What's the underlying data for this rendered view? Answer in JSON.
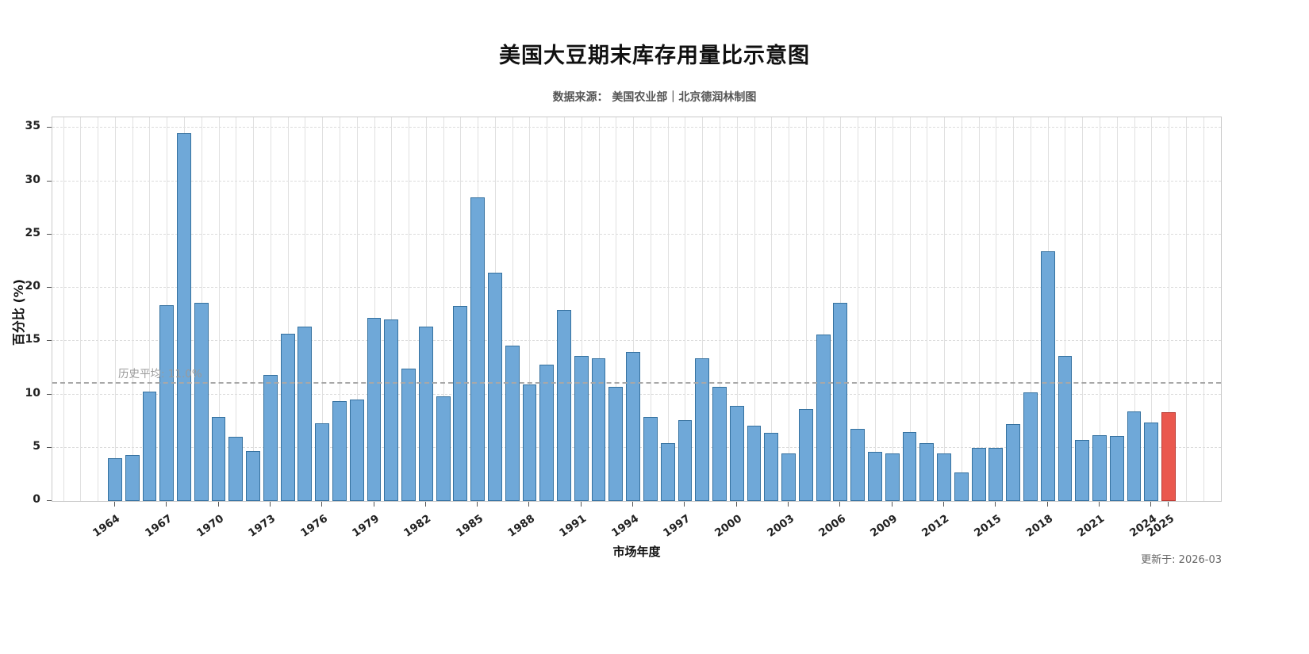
{
  "header": {
    "title": "美国大豆期末库存用量比示意图",
    "subtitle": "数据来源： 美国农业部｜北京德润林制图"
  },
  "footer": {
    "updated": "更新于: 2026-03"
  },
  "chart_data": {
    "type": "bar",
    "title": "美国大豆期末库存用量比示意图",
    "xlabel": "市场年度",
    "ylabel": "百分比 (%)",
    "ylim": [
      0,
      36
    ],
    "yticks": [
      0,
      5,
      10,
      15,
      20,
      25,
      30,
      35
    ],
    "xticks": [
      1964,
      1967,
      1970,
      1973,
      1976,
      1979,
      1982,
      1985,
      1988,
      1991,
      1994,
      1997,
      2000,
      2003,
      2006,
      2009,
      2012,
      2015,
      2018,
      2021,
      2024,
      2025
    ],
    "grid": true,
    "legend": "none",
    "average_line": {
      "value": 11.0,
      "label": "历史平均: 11.0%"
    },
    "categories": [
      1964,
      1965,
      1966,
      1967,
      1968,
      1969,
      1970,
      1971,
      1972,
      1973,
      1974,
      1975,
      1976,
      1977,
      1978,
      1979,
      1980,
      1981,
      1982,
      1983,
      1984,
      1985,
      1986,
      1987,
      1988,
      1989,
      1990,
      1991,
      1992,
      1993,
      1994,
      1995,
      1996,
      1997,
      1998,
      1999,
      2000,
      2001,
      2002,
      2003,
      2004,
      2005,
      2006,
      2007,
      2008,
      2009,
      2010,
      2011,
      2012,
      2013,
      2014,
      2015,
      2016,
      2017,
      2018,
      2019,
      2020,
      2021,
      2022,
      2023,
      2024,
      2025
    ],
    "values": [
      4.0,
      4.3,
      10.3,
      18.4,
      34.5,
      18.6,
      7.9,
      6.0,
      4.7,
      11.8,
      15.7,
      16.4,
      7.3,
      9.4,
      9.5,
      17.2,
      17.0,
      12.4,
      16.4,
      9.8,
      18.3,
      28.5,
      21.4,
      14.6,
      10.9,
      12.8,
      17.9,
      13.6,
      13.4,
      10.7,
      14.0,
      7.9,
      5.4,
      7.6,
      13.4,
      10.7,
      8.9,
      7.1,
      6.4,
      4.5,
      8.6,
      15.6,
      18.6,
      6.8,
      4.6,
      4.5,
      6.5,
      5.4,
      4.5,
      2.7,
      5.0,
      5.0,
      7.2,
      10.2,
      23.4,
      13.6,
      5.7,
      6.2,
      6.1,
      8.4,
      7.4,
      8.3
    ],
    "highlight_index": 61,
    "colors": {
      "bar_fill": "#6fa8d8",
      "bar_edge": "#35719f",
      "highlight_fill": "#ea584e",
      "highlight_edge": "#b93a33",
      "grid": "#e0e0e0",
      "average_line": "#a8a8a8",
      "background": "#ffffff"
    }
  }
}
